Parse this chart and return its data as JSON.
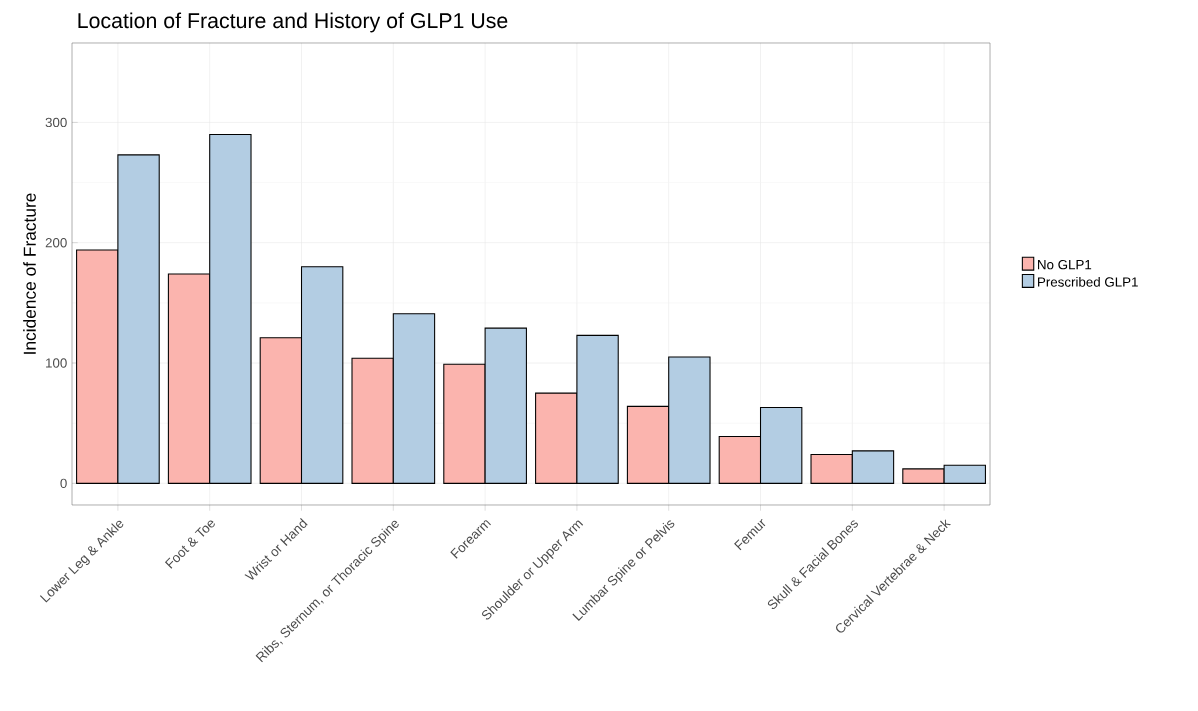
{
  "chart_data": {
    "type": "bar",
    "title": "Location of Fracture and History of GLP1 Use",
    "ylabel": "Incidence of Fracture",
    "categories": [
      "Lower Leg & Ankle",
      "Foot & Toe",
      "Wrist or Hand",
      "Ribs, Sternum, or Thoracic Spine",
      "Forearm",
      "Shoulder or Upper Arm",
      "Lumbar Spine or Pelvis",
      "Femur",
      "Skull & Facial Bones",
      "Cervical Vertebrae & Neck"
    ],
    "series": [
      {
        "name": "No GLP1",
        "color": "#fbb4ae",
        "values": [
          194,
          174,
          121,
          104,
          99,
          75,
          64,
          39,
          24,
          12
        ]
      },
      {
        "name": "Prescribed GLP1",
        "color": "#b3cde3",
        "values": [
          273,
          290,
          180,
          141,
          129,
          123,
          105,
          63,
          27,
          15
        ]
      }
    ],
    "ylim": [
      -18,
      366
    ],
    "yticks": [
      0,
      100,
      200,
      300
    ],
    "grid": true,
    "legend": "right"
  }
}
